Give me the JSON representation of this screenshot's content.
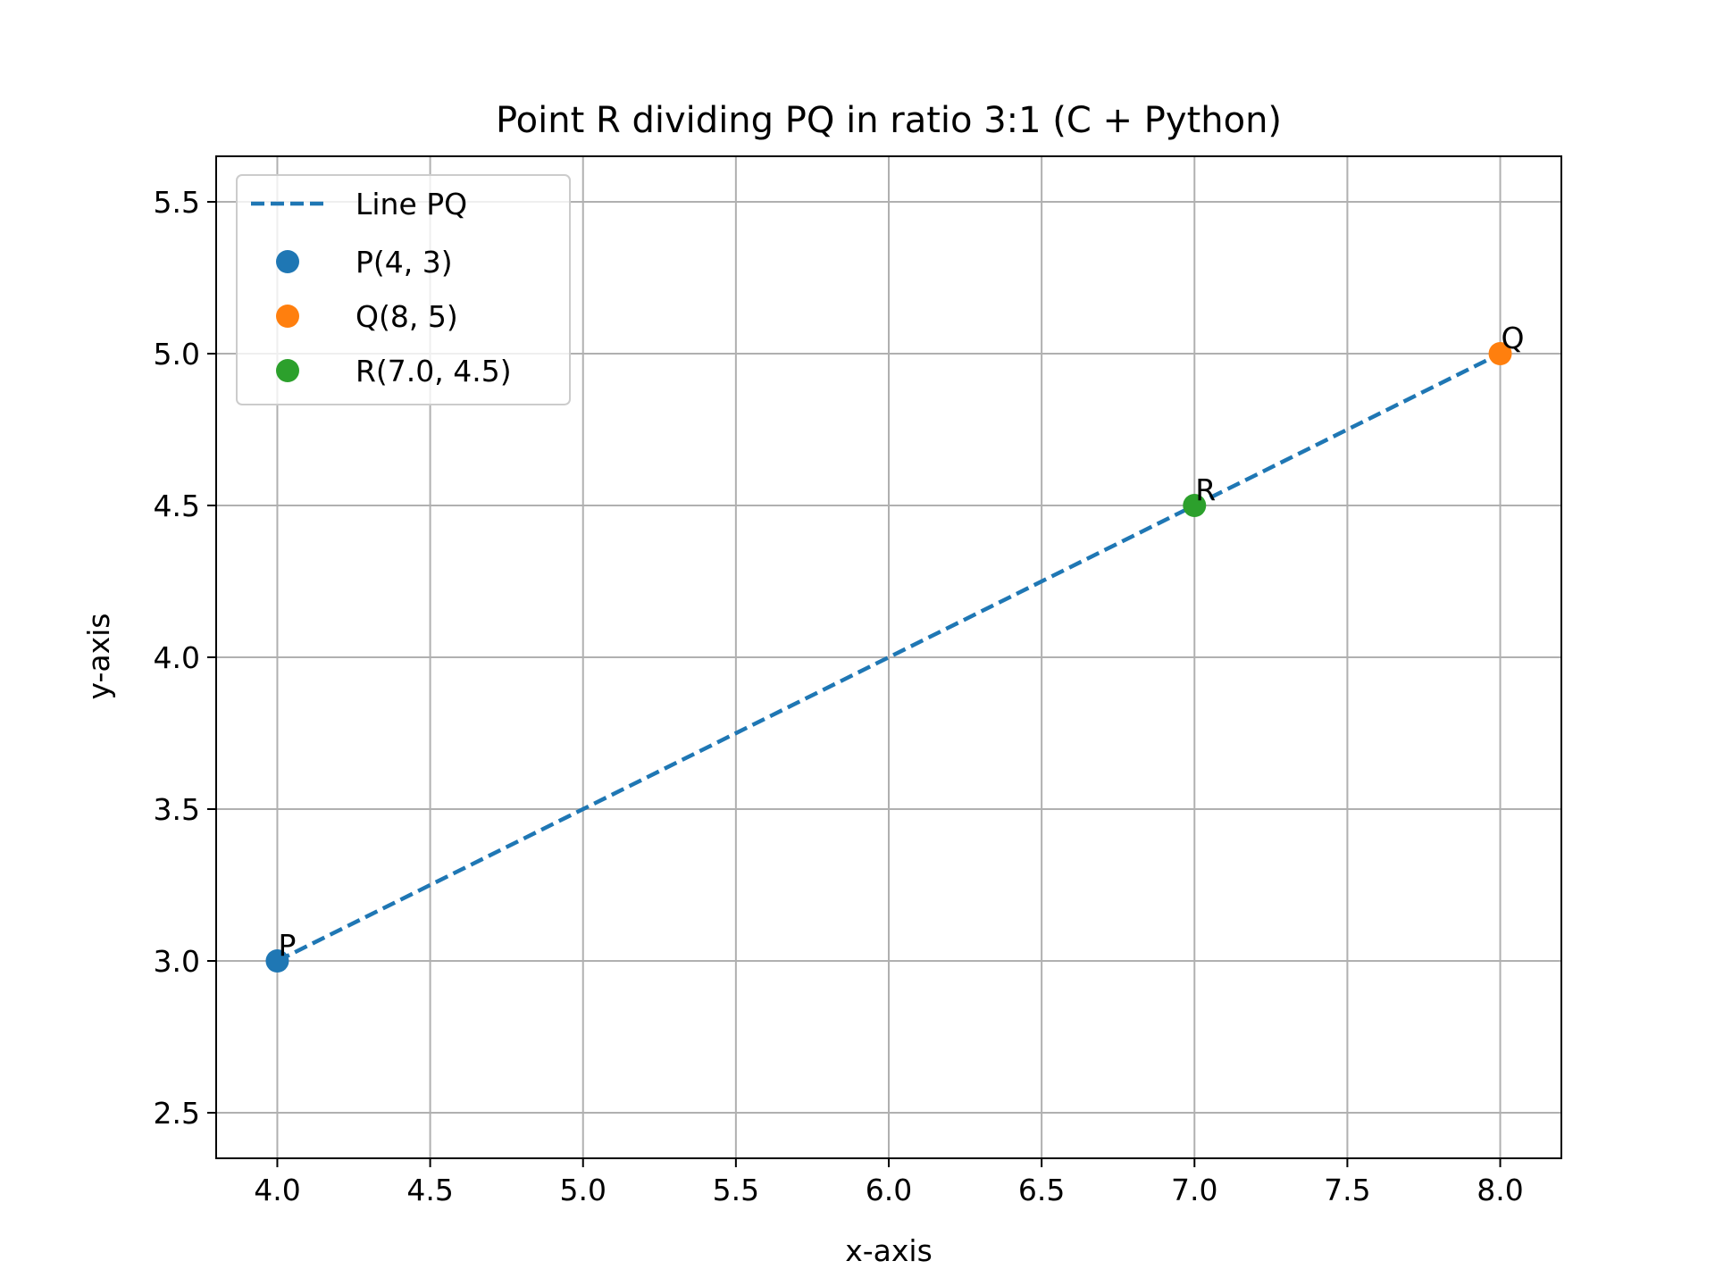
{
  "chart_data": {
    "type": "line",
    "title": "Point R dividing PQ in ratio 3:1 (C + Python)",
    "xlabel": "x-axis",
    "ylabel": "y-axis",
    "xlim": [
      3.8,
      8.2
    ],
    "ylim": [
      2.35,
      5.65
    ],
    "xticks": [
      4.0,
      4.5,
      5.0,
      5.5,
      6.0,
      6.5,
      7.0,
      7.5,
      8.0
    ],
    "xtick_labels": [
      "4.0",
      "4.5",
      "5.0",
      "5.5",
      "6.0",
      "6.5",
      "7.0",
      "7.5",
      "8.0"
    ],
    "yticks": [
      2.5,
      3.0,
      3.5,
      4.0,
      4.5,
      5.0,
      5.5
    ],
    "ytick_labels": [
      "2.5",
      "3.0",
      "3.5",
      "4.0",
      "4.5",
      "5.0",
      "5.5"
    ],
    "grid": true,
    "legend_position": "top-left",
    "line": {
      "name": "Line PQ",
      "x": [
        4,
        8
      ],
      "y": [
        3,
        5
      ],
      "style": "dashed",
      "color": "#1f77b4"
    },
    "points": [
      {
        "name": "P(4, 3)",
        "label": "P",
        "x": 4,
        "y": 3,
        "color": "#1f77b4"
      },
      {
        "name": "Q(8, 5)",
        "label": "Q",
        "x": 8,
        "y": 5,
        "color": "#ff7f0e"
      },
      {
        "name": "R(7.0, 4.5)",
        "label": "R",
        "x": 7.0,
        "y": 4.5,
        "color": "#2ca02c"
      }
    ]
  }
}
